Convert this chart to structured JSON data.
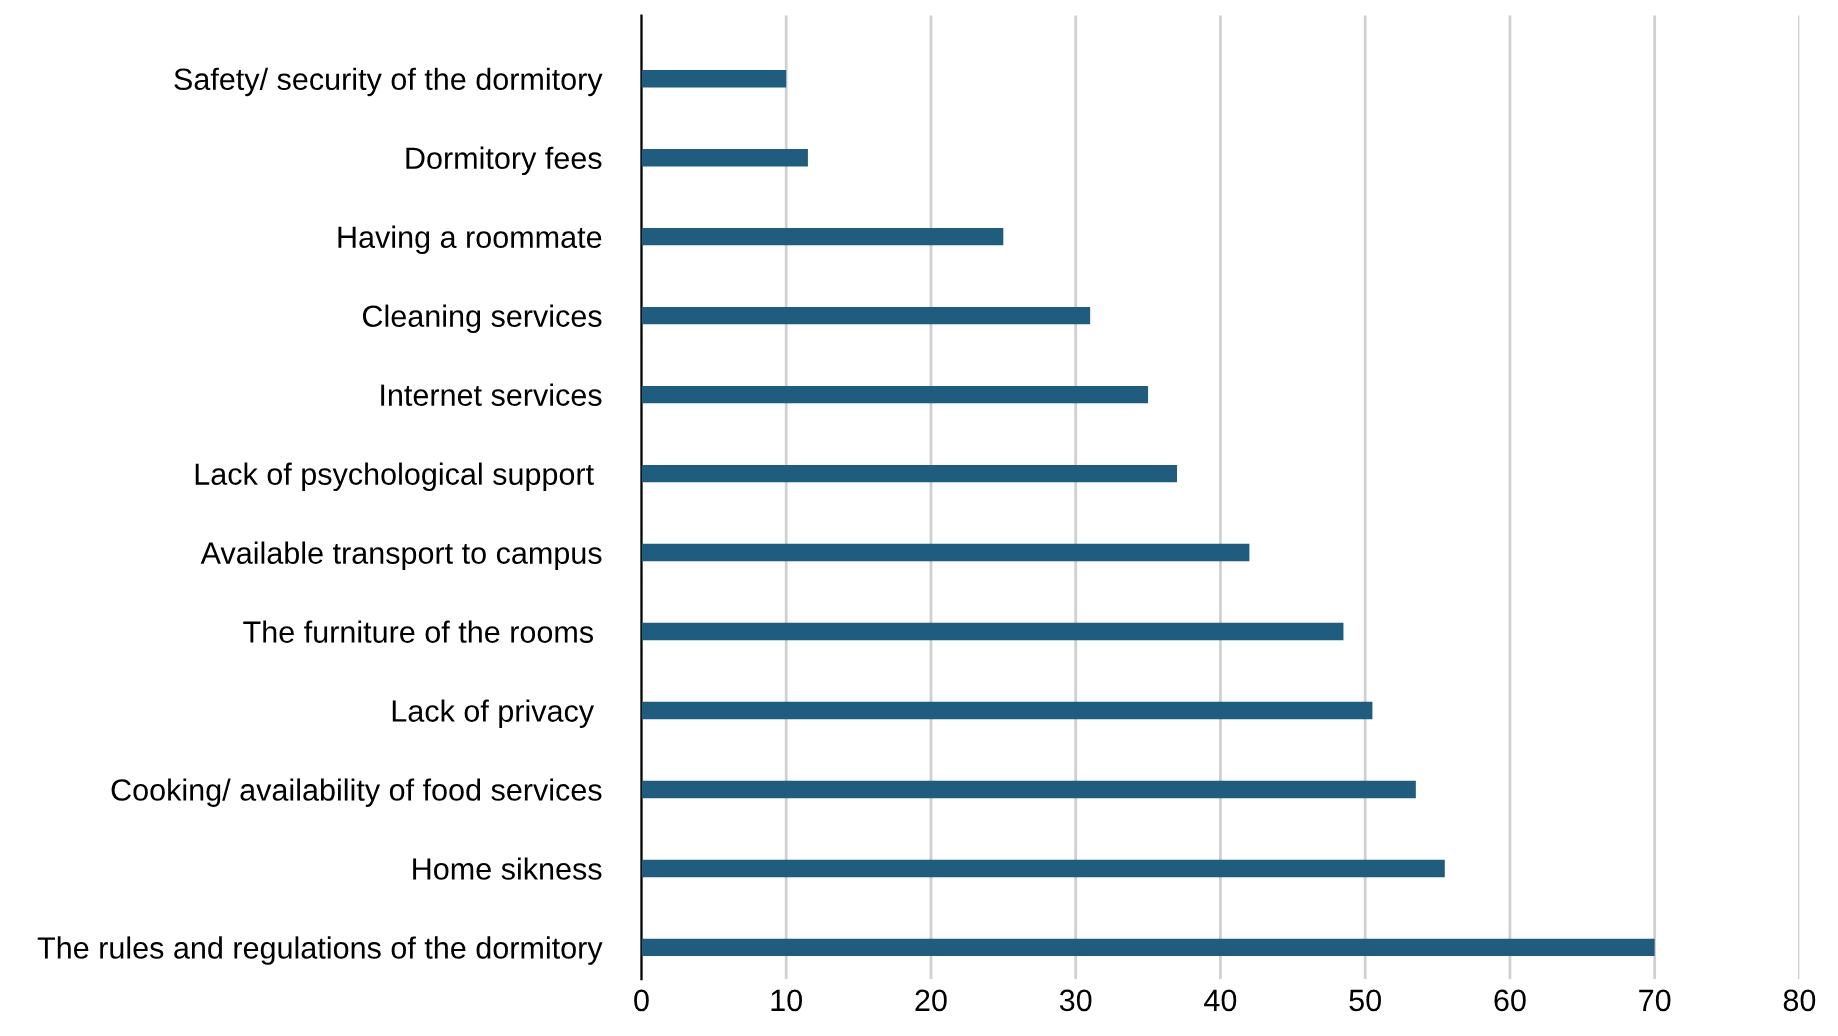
{
  "chart_data": {
    "type": "bar",
    "orientation": "horizontal",
    "categories": [
      "Safety/ security of the dormitory",
      "Dormitory fees",
      "Having a roommate",
      "Cleaning services",
      "Internet services",
      "Lack of psychological support ",
      "Available transport to campus",
      "The furniture of the rooms ",
      "Lack of privacy ",
      "Cooking/ availability of food services",
      "Home sikness",
      "The rules and regulations of the dormitory"
    ],
    "values": [
      10,
      11.5,
      25,
      31,
      35,
      37,
      42,
      48.5,
      50.5,
      53.5,
      55.5,
      70
    ],
    "color": "#1f5c7e",
    "xlim": [
      0,
      80
    ],
    "xticks": [
      0,
      10,
      20,
      30,
      40,
      50,
      60,
      70,
      80
    ],
    "grid": "x"
  }
}
